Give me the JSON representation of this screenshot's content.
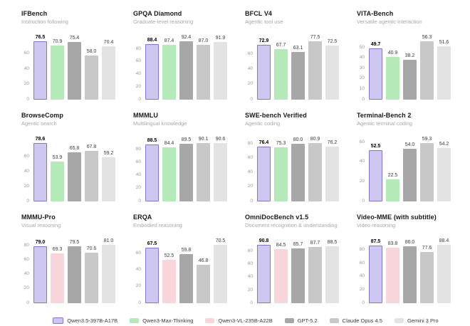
{
  "page": {
    "background": "#ffffff"
  },
  "models": [
    {
      "label": "Qwen3.5-397B-A17B",
      "fill": "#cec8f1",
      "border": "#8276d4"
    },
    {
      "label": "Qwen3-Max-Thinking",
      "fill": "#b4eab7",
      "border": ""
    },
    {
      "label": "Qwen3-VL-235B-A22B",
      "fill": "#f9d5dc",
      "border": ""
    },
    {
      "label": "GPT-5.2",
      "fill": "#a7a7a7",
      "border": ""
    },
    {
      "label": "Claude Opus 4.5",
      "fill": "#c8c8c8",
      "border": ""
    },
    {
      "label": "Gemini 3 Pro",
      "fill": "#e3e3e3",
      "border": ""
    }
  ],
  "chart_data": [
    {
      "type": "bar",
      "title": "IFBench",
      "subtitle": "Instruction following",
      "ymax": 80.5,
      "yticks": [
        0,
        20,
        40,
        60
      ],
      "bars": [
        {
          "model": "Qwen3.5-397B-A17B",
          "value": 76.5
        },
        {
          "model": "Qwen3-Max-Thinking",
          "value": 70.9
        },
        {
          "model": "GPT-5.2",
          "value": 75.4
        },
        {
          "model": "Claude Opus 4.5",
          "value": 58.0
        },
        {
          "model": "Gemini 3 Pro",
          "value": 70.4
        }
      ]
    },
    {
      "type": "bar",
      "title": "GPQA Diamond",
      "subtitle": "Graduate-level reasoning",
      "ymax": 97,
      "yticks": [
        0,
        20,
        40,
        60,
        80
      ],
      "bars": [
        {
          "model": "Qwen3.5-397B-A17B",
          "value": 88.4
        },
        {
          "model": "Qwen3-Max-Thinking",
          "value": 87.4
        },
        {
          "model": "GPT-5.2",
          "value": 92.4
        },
        {
          "model": "Claude Opus 4.5",
          "value": 87.0
        },
        {
          "model": "Gemini 3 Pro",
          "value": 91.9
        }
      ]
    },
    {
      "type": "bar",
      "title": "BFCL V4",
      "subtitle": "Agentic tool use",
      "ymax": 81.5,
      "yticks": [
        0,
        20,
        40,
        60
      ],
      "bars": [
        {
          "model": "Qwen3.5-397B-A17B",
          "value": 72.9
        },
        {
          "model": "Qwen3-Max-Thinking",
          "value": 67.7
        },
        {
          "model": "GPT-5.2",
          "value": 63.1
        },
        {
          "model": "Claude Opus 4.5",
          "value": 77.5
        },
        {
          "model": "Gemini 3 Pro",
          "value": 72.5
        }
      ]
    },
    {
      "type": "bar",
      "title": "VITA-Bench",
      "subtitle": "Versatile agentic interaction",
      "ymax": 59,
      "yticks": [
        0,
        10,
        20,
        30,
        40,
        50
      ],
      "bars": [
        {
          "model": "Qwen3.5-397B-A17B",
          "value": 49.7
        },
        {
          "model": "Qwen3-Max-Thinking",
          "value": 40.9
        },
        {
          "model": "GPT-5.2",
          "value": 38.2
        },
        {
          "model": "Claude Opus 4.5",
          "value": 56.3
        },
        {
          "model": "Gemini 3 Pro",
          "value": 51.6
        }
      ]
    },
    {
      "type": "bar",
      "title": "BrowseComp",
      "subtitle": "Agentic search",
      "ymax": 82.5,
      "yticks": [
        0,
        20,
        40,
        60
      ],
      "bars": [
        {
          "model": "Qwen3.5-397B-A17B",
          "value": 78.6
        },
        {
          "model": "Qwen3-Max-Thinking",
          "value": 53.9
        },
        {
          "model": "GPT-5.2",
          "value": 65.8
        },
        {
          "model": "Claude Opus 4.5",
          "value": 67.8
        },
        {
          "model": "Gemini 3 Pro",
          "value": 59.2
        }
      ]
    },
    {
      "type": "bar",
      "title": "MMMLU",
      "subtitle": "Multilingual knowledge",
      "ymax": 95,
      "yticks": [
        0,
        20,
        40,
        60,
        80
      ],
      "bars": [
        {
          "model": "Qwen3.5-397B-A17B",
          "value": 88.5
        },
        {
          "model": "Qwen3-Max-Thinking",
          "value": 84.4
        },
        {
          "model": "GPT-5.2",
          "value": 89.5
        },
        {
          "model": "Claude Opus 4.5",
          "value": 90.1
        },
        {
          "model": "Gemini 3 Pro",
          "value": 90.6
        }
      ]
    },
    {
      "type": "bar",
      "title": "SWE-bench Verified",
      "subtitle": "Agentic coding",
      "ymax": 85,
      "yticks": [
        0,
        20,
        40,
        60,
        80
      ],
      "bars": [
        {
          "model": "Qwen3.5-397B-A17B",
          "value": 76.4
        },
        {
          "model": "Qwen3-Max-Thinking",
          "value": 75.3
        },
        {
          "model": "GPT-5.2",
          "value": 80.0
        },
        {
          "model": "Claude Opus 4.5",
          "value": 80.9
        },
        {
          "model": "Gemini 3 Pro",
          "value": 76.2
        }
      ]
    },
    {
      "type": "bar",
      "title": "Terminal-Bench 2",
      "subtitle": "Agentic terminal coding",
      "ymax": 62.5,
      "yticks": [
        0,
        20,
        40,
        60
      ],
      "bars": [
        {
          "model": "Qwen3.5-397B-A17B",
          "value": 52.5
        },
        {
          "model": "Qwen3-Max-Thinking",
          "value": 22.5
        },
        {
          "model": "GPT-5.2",
          "value": 54.0
        },
        {
          "model": "Claude Opus 4.5",
          "value": 59.3
        },
        {
          "model": "Gemini 3 Pro",
          "value": 54.2
        }
      ]
    },
    {
      "type": "bar",
      "title": "MMMU-Pro",
      "subtitle": "Visual reasoning",
      "ymax": 85,
      "yticks": [
        0,
        20,
        40,
        60,
        80
      ],
      "bars": [
        {
          "model": "Qwen3.5-397B-A17B",
          "value": 79.0
        },
        {
          "model": "Qwen3-VL-235B-A22B",
          "value": 69.3
        },
        {
          "model": "GPT-5.2",
          "value": 79.5
        },
        {
          "model": "Claude Opus 4.5",
          "value": 70.6
        },
        {
          "model": "Gemini 3 Pro",
          "value": 81.0
        }
      ]
    },
    {
      "type": "bar",
      "title": "ERQA",
      "subtitle": "Embodied reasoning",
      "ymax": 74,
      "yticks": [
        0,
        20,
        40,
        60
      ],
      "bars": [
        {
          "model": "Qwen3.5-397B-A17B",
          "value": 67.5
        },
        {
          "model": "Qwen3-VL-235B-A22B",
          "value": 52.5
        },
        {
          "model": "GPT-5.2",
          "value": 59.8
        },
        {
          "model": "Claude Opus 4.5",
          "value": 46.8
        },
        {
          "model": "Gemini 3 Pro",
          "value": 70.5
        }
      ]
    },
    {
      "type": "bar",
      "title": "OmniDocBench v1.5",
      "subtitle": "Document recognition & understanding",
      "ymax": 95.5,
      "yticks": [
        0,
        20,
        40,
        60,
        80
      ],
      "bars": [
        {
          "model": "Qwen3.5-397B-A17B",
          "value": 90.8
        },
        {
          "model": "Qwen3-VL-235B-A22B",
          "value": 84.5
        },
        {
          "model": "GPT-5.2",
          "value": 85.7
        },
        {
          "model": "Claude Opus 4.5",
          "value": 87.7
        },
        {
          "model": "Gemini 3 Pro",
          "value": 88.5
        }
      ]
    },
    {
      "type": "bar",
      "title": "Video-MME (with subtitle)",
      "subtitle": "Video reasoning",
      "ymax": 92.5,
      "yticks": [
        0,
        20,
        40,
        60,
        80
      ],
      "bars": [
        {
          "model": "Qwen3.5-397B-A17B",
          "value": 87.5
        },
        {
          "model": "Qwen3-VL-235B-A22B",
          "value": 83.8
        },
        {
          "model": "GPT-5.2",
          "value": 86.0
        },
        {
          "model": "Claude Opus 4.5",
          "value": 77.6
        },
        {
          "model": "Gemini 3 Pro",
          "value": 88.4
        }
      ]
    }
  ]
}
